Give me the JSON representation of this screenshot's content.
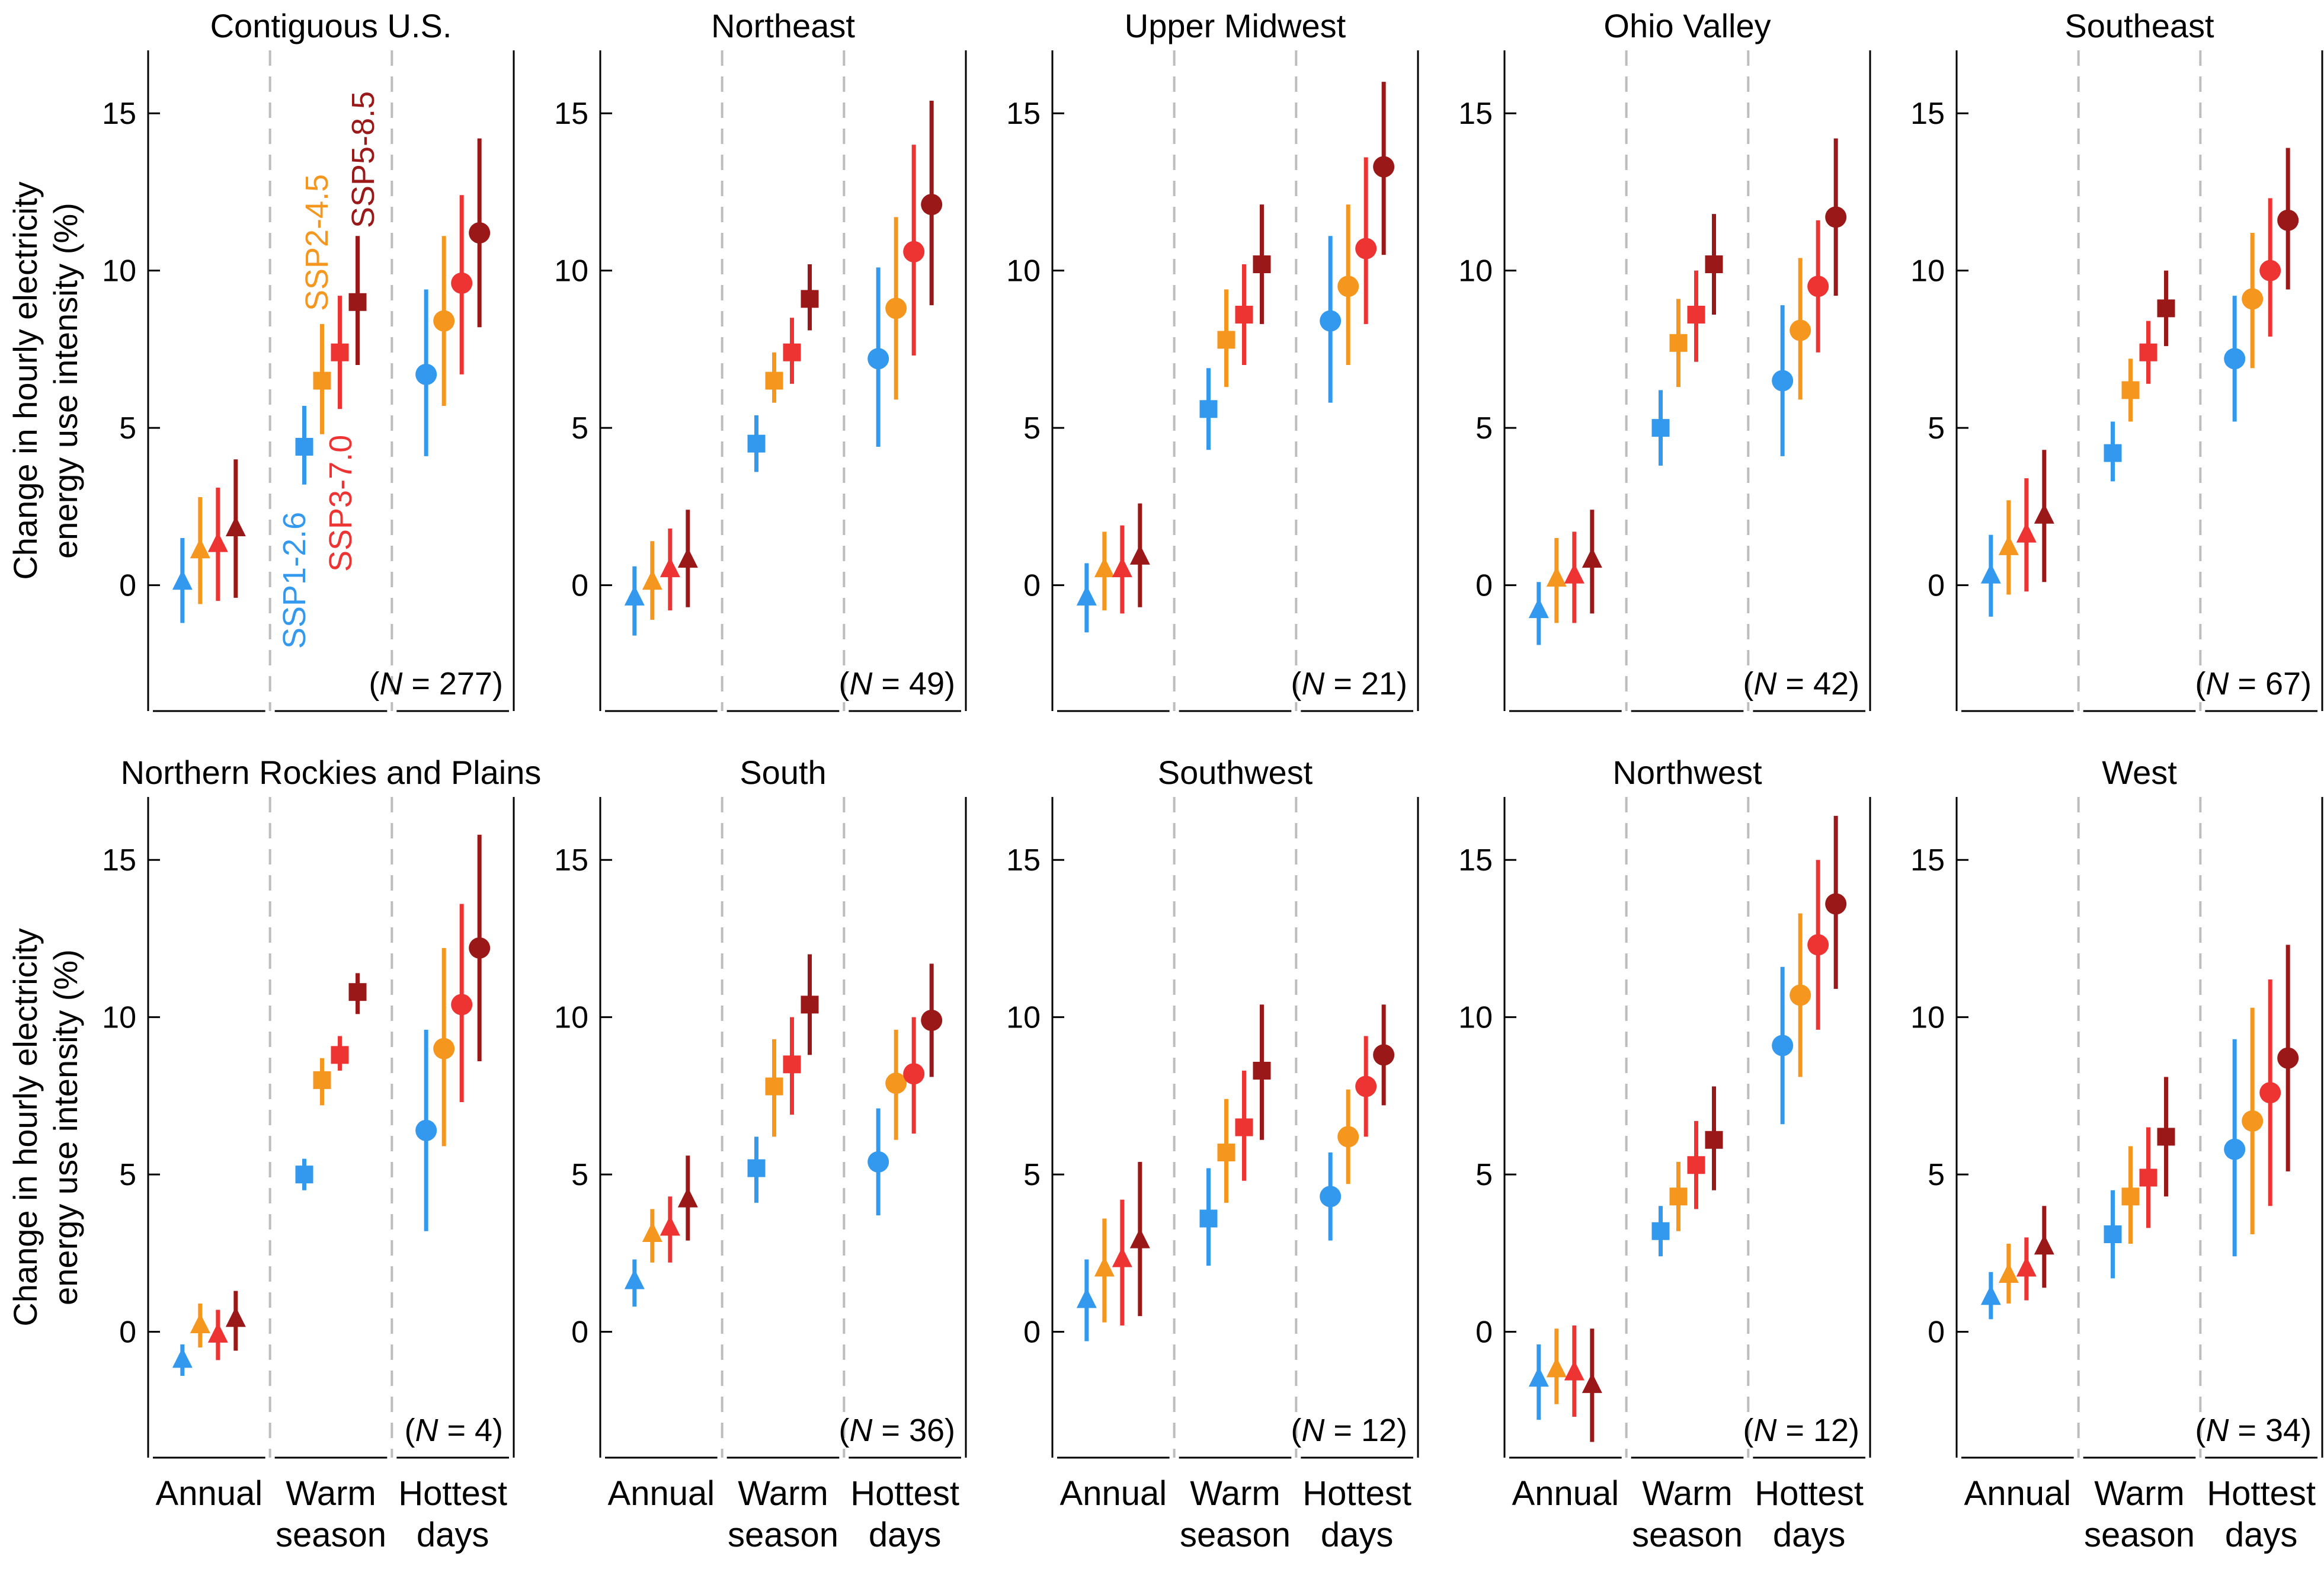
{
  "chart_data": {
    "type": "scatter",
    "y_axis_label_line1": "Change in hourly electricity",
    "y_axis_label_line2": "energy use intensity (%)",
    "y_ticks": [
      0,
      5,
      10,
      15
    ],
    "ylim": [
      -4,
      17
    ],
    "groups": [
      {
        "key": "annual",
        "lines": [
          "Annual"
        ],
        "marker": "triangle"
      },
      {
        "key": "warm",
        "lines": [
          "Warm",
          "season"
        ],
        "marker": "square"
      },
      {
        "key": "hottest",
        "lines": [
          "Hottest",
          "days"
        ],
        "marker": "circle"
      }
    ],
    "scenarios": [
      {
        "name": "SSP1-2.6",
        "color": "#3399ee"
      },
      {
        "name": "SSP2-4.5",
        "color": "#f5961e"
      },
      {
        "name": "SSP3-7.0",
        "color": "#ee3333"
      },
      {
        "name": "SSP5-8.5",
        "color": "#9b1818"
      }
    ],
    "n_prefix": "(",
    "n_var": "N",
    "n_eq": " = ",
    "n_suffix": ")",
    "panels": [
      {
        "title": "Contiguous U.S.",
        "n": 277,
        "data": [
          [
            [
              0.1,
              -1.2,
              1.5
            ],
            [
              1.1,
              -0.6,
              2.8
            ],
            [
              1.3,
              -0.5,
              3.1
            ],
            [
              1.8,
              -0.4,
              4.0
            ]
          ],
          [
            [
              4.4,
              3.2,
              5.7
            ],
            [
              6.5,
              4.8,
              8.3
            ],
            [
              7.4,
              5.6,
              9.2
            ],
            [
              9.0,
              7.0,
              11.1
            ]
          ],
          [
            [
              6.7,
              4.1,
              9.4
            ],
            [
              8.4,
              5.7,
              11.1
            ],
            [
              9.6,
              6.7,
              12.4
            ],
            [
              11.2,
              8.2,
              14.2
            ]
          ]
        ]
      },
      {
        "title": "Northeast",
        "n": 49,
        "data": [
          [
            [
              -0.4,
              -1.6,
              0.6
            ],
            [
              0.1,
              -1.1,
              1.4
            ],
            [
              0.5,
              -0.8,
              1.8
            ],
            [
              0.8,
              -0.7,
              2.4
            ]
          ],
          [
            [
              4.5,
              3.6,
              5.4
            ],
            [
              6.5,
              5.8,
              7.4
            ],
            [
              7.4,
              6.4,
              8.5
            ],
            [
              9.1,
              8.1,
              10.2
            ]
          ],
          [
            [
              7.2,
              4.4,
              10.1
            ],
            [
              8.8,
              5.9,
              11.7
            ],
            [
              10.6,
              7.3,
              14.0
            ],
            [
              12.1,
              8.9,
              15.4
            ]
          ]
        ]
      },
      {
        "title": "Upper Midwest",
        "n": 21,
        "data": [
          [
            [
              -0.4,
              -1.5,
              0.7
            ],
            [
              0.5,
              -0.8,
              1.7
            ],
            [
              0.5,
              -0.9,
              1.9
            ],
            [
              0.9,
              -0.7,
              2.6
            ]
          ],
          [
            [
              5.6,
              4.3,
              6.9
            ],
            [
              7.8,
              6.3,
              9.4
            ],
            [
              8.6,
              7.0,
              10.2
            ],
            [
              10.2,
              8.3,
              12.1
            ]
          ],
          [
            [
              8.4,
              5.8,
              11.1
            ],
            [
              9.5,
              7.0,
              12.1
            ],
            [
              10.7,
              8.3,
              13.6
            ],
            [
              13.3,
              10.5,
              16.0
            ]
          ]
        ]
      },
      {
        "title": "Ohio Valley",
        "n": 42,
        "data": [
          [
            [
              -0.8,
              -1.9,
              0.1
            ],
            [
              0.2,
              -1.2,
              1.5
            ],
            [
              0.3,
              -1.2,
              1.7
            ],
            [
              0.8,
              -0.9,
              2.4
            ]
          ],
          [
            [
              5.0,
              3.8,
              6.2
            ],
            [
              7.7,
              6.3,
              9.1
            ],
            [
              8.6,
              7.1,
              10.0
            ],
            [
              10.2,
              8.6,
              11.8
            ]
          ],
          [
            [
              6.5,
              4.1,
              8.9
            ],
            [
              8.1,
              5.9,
              10.4
            ],
            [
              9.5,
              7.4,
              11.6
            ],
            [
              11.7,
              9.2,
              14.2
            ]
          ]
        ]
      },
      {
        "title": "Southeast",
        "n": 67,
        "data": [
          [
            [
              0.3,
              -1.0,
              1.6
            ],
            [
              1.2,
              -0.3,
              2.7
            ],
            [
              1.6,
              -0.2,
              3.4
            ],
            [
              2.2,
              0.1,
              4.3
            ]
          ],
          [
            [
              4.2,
              3.3,
              5.2
            ],
            [
              6.2,
              5.2,
              7.2
            ],
            [
              7.4,
              6.4,
              8.4
            ],
            [
              8.8,
              7.6,
              10.0
            ]
          ],
          [
            [
              7.2,
              5.2,
              9.2
            ],
            [
              9.1,
              6.9,
              11.2
            ],
            [
              10.0,
              7.9,
              12.3
            ],
            [
              11.6,
              9.4,
              13.9
            ]
          ]
        ]
      },
      {
        "title": "Northern Rockies and Plains",
        "n": 4,
        "data": [
          [
            [
              -0.9,
              -1.4,
              -0.4
            ],
            [
              0.2,
              -0.5,
              0.9
            ],
            [
              -0.1,
              -0.9,
              0.7
            ],
            [
              0.4,
              -0.6,
              1.3
            ]
          ],
          [
            [
              5.0,
              4.5,
              5.5
            ],
            [
              8.0,
              7.2,
              8.7
            ],
            [
              8.8,
              8.3,
              9.4
            ],
            [
              10.8,
              10.1,
              11.4
            ]
          ],
          [
            [
              6.4,
              3.2,
              9.6
            ],
            [
              9.0,
              5.9,
              12.2
            ],
            [
              10.4,
              7.3,
              13.6
            ],
            [
              12.2,
              8.6,
              15.8
            ]
          ]
        ]
      },
      {
        "title": "South",
        "n": 36,
        "data": [
          [
            [
              1.6,
              0.8,
              2.3
            ],
            [
              3.1,
              2.2,
              3.9
            ],
            [
              3.3,
              2.2,
              4.3
            ],
            [
              4.2,
              2.9,
              5.6
            ]
          ],
          [
            [
              5.2,
              4.1,
              6.2
            ],
            [
              7.8,
              6.2,
              9.3
            ],
            [
              8.5,
              6.9,
              10.0
            ],
            [
              10.4,
              8.8,
              12.0
            ]
          ],
          [
            [
              5.4,
              3.7,
              7.1
            ],
            [
              7.9,
              6.1,
              9.6
            ],
            [
              8.2,
              6.3,
              10.0
            ],
            [
              9.9,
              8.1,
              11.7
            ]
          ]
        ]
      },
      {
        "title": "Southwest",
        "n": 12,
        "data": [
          [
            [
              1.0,
              -0.3,
              2.3
            ],
            [
              2.0,
              0.3,
              3.6
            ],
            [
              2.3,
              0.2,
              4.2
            ],
            [
              2.9,
              0.5,
              5.4
            ]
          ],
          [
            [
              3.6,
              2.1,
              5.2
            ],
            [
              5.7,
              4.1,
              7.4
            ],
            [
              6.5,
              4.8,
              8.3
            ],
            [
              8.3,
              6.1,
              10.4
            ]
          ],
          [
            [
              4.3,
              2.9,
              5.7
            ],
            [
              6.2,
              4.7,
              7.7
            ],
            [
              7.8,
              6.2,
              9.4
            ],
            [
              8.8,
              7.2,
              10.4
            ]
          ]
        ]
      },
      {
        "title": "Northwest",
        "n": 12,
        "data": [
          [
            [
              -1.5,
              -2.8,
              -0.4
            ],
            [
              -1.2,
              -2.3,
              0.1
            ],
            [
              -1.3,
              -2.7,
              0.2
            ],
            [
              -1.7,
              -3.5,
              0.1
            ]
          ],
          [
            [
              3.2,
              2.4,
              4.0
            ],
            [
              4.3,
              3.2,
              5.4
            ],
            [
              5.3,
              3.9,
              6.7
            ],
            [
              6.1,
              4.5,
              7.8
            ]
          ],
          [
            [
              9.1,
              6.6,
              11.6
            ],
            [
              10.7,
              8.1,
              13.3
            ],
            [
              12.3,
              9.6,
              15.0
            ],
            [
              13.6,
              10.9,
              16.4
            ]
          ]
        ]
      },
      {
        "title": "West",
        "n": 34,
        "data": [
          [
            [
              1.1,
              0.4,
              1.9
            ],
            [
              1.8,
              0.9,
              2.8
            ],
            [
              2.0,
              1.0,
              3.0
            ],
            [
              2.7,
              1.4,
              4.0
            ]
          ],
          [
            [
              3.1,
              1.7,
              4.5
            ],
            [
              4.3,
              2.8,
              5.9
            ],
            [
              4.9,
              3.3,
              6.5
            ],
            [
              6.2,
              4.3,
              8.1
            ]
          ],
          [
            [
              5.8,
              2.4,
              9.3
            ],
            [
              6.7,
              3.1,
              10.3
            ],
            [
              7.6,
              4.0,
              11.2
            ],
            [
              8.7,
              5.1,
              12.3
            ]
          ]
        ]
      }
    ]
  }
}
